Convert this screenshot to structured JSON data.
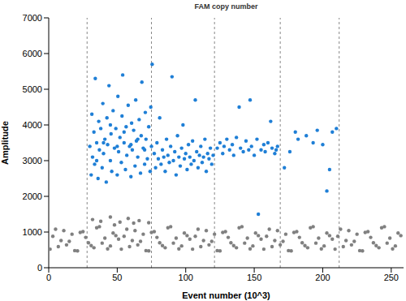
{
  "chart_data": {
    "type": "scatter",
    "title": "FAM copy number",
    "x_label": "Event number (10^3)",
    "y_label": "Amplitude",
    "xlim": [
      0,
      259
    ],
    "ylim": [
      0,
      7000
    ],
    "xticks": [
      0,
      50,
      100,
      150,
      200,
      250
    ],
    "yticks": [
      0,
      1000,
      2000,
      3000,
      4000,
      5000,
      6000,
      7000
    ],
    "grid": false,
    "separators": [
      28,
      75,
      121,
      169,
      212
    ],
    "series": [
      {
        "color": "#808080",
        "marker": "circle",
        "points": [
          [
            1,
            520
          ],
          [
            5,
            1080
          ],
          [
            9,
            760
          ],
          [
            13,
            640
          ],
          [
            17,
            940
          ],
          [
            21,
            470
          ],
          [
            25,
            1010
          ],
          [
            29,
            700
          ],
          [
            33,
            560
          ],
          [
            37,
            1150
          ],
          [
            41,
            830
          ],
          [
            45,
            610
          ],
          [
            49,
            900
          ],
          [
            53,
            520
          ],
          [
            57,
            1080
          ],
          [
            61,
            760
          ],
          [
            65,
            640
          ],
          [
            69,
            940
          ],
          [
            73,
            470
          ],
          [
            77,
            1010
          ],
          [
            81,
            700
          ],
          [
            85,
            560
          ],
          [
            89,
            1150
          ],
          [
            93,
            830
          ],
          [
            97,
            610
          ],
          [
            101,
            900
          ],
          [
            105,
            520
          ],
          [
            109,
            1080
          ],
          [
            113,
            760
          ],
          [
            117,
            640
          ],
          [
            121,
            940
          ],
          [
            125,
            470
          ],
          [
            129,
            1010
          ],
          [
            133,
            700
          ],
          [
            137,
            560
          ],
          [
            141,
            1150
          ],
          [
            145,
            830
          ],
          [
            149,
            610
          ],
          [
            153,
            900
          ],
          [
            157,
            520
          ],
          [
            161,
            1080
          ],
          [
            165,
            760
          ],
          [
            169,
            640
          ],
          [
            173,
            940
          ],
          [
            177,
            470
          ],
          [
            181,
            1010
          ],
          [
            185,
            700
          ],
          [
            189,
            560
          ],
          [
            193,
            1150
          ],
          [
            197,
            830
          ],
          [
            201,
            610
          ],
          [
            205,
            900
          ],
          [
            209,
            520
          ],
          [
            213,
            1080
          ],
          [
            217,
            760
          ],
          [
            221,
            640
          ],
          [
            225,
            940
          ],
          [
            229,
            470
          ],
          [
            233,
            1010
          ],
          [
            237,
            700
          ],
          [
            241,
            560
          ],
          [
            245,
            1150
          ],
          [
            249,
            830
          ],
          [
            253,
            610
          ],
          [
            257,
            900
          ],
          [
            3,
            880
          ],
          [
            7,
            590
          ],
          [
            11,
            1040
          ],
          [
            15,
            740
          ],
          [
            19,
            480
          ],
          [
            23,
            990
          ],
          [
            27,
            850
          ],
          [
            31,
            620
          ],
          [
            35,
            1120
          ],
          [
            39,
            690
          ],
          [
            43,
            530
          ],
          [
            47,
            970
          ],
          [
            51,
            800
          ],
          [
            55,
            880
          ],
          [
            59,
            590
          ],
          [
            63,
            1040
          ],
          [
            67,
            740
          ],
          [
            71,
            480
          ],
          [
            75,
            990
          ],
          [
            79,
            850
          ],
          [
            83,
            620
          ],
          [
            87,
            1120
          ],
          [
            91,
            690
          ],
          [
            95,
            530
          ],
          [
            99,
            970
          ],
          [
            103,
            800
          ],
          [
            107,
            880
          ],
          [
            111,
            590
          ],
          [
            115,
            1040
          ],
          [
            119,
            740
          ],
          [
            123,
            480
          ],
          [
            127,
            990
          ],
          [
            131,
            850
          ],
          [
            135,
            620
          ],
          [
            139,
            1120
          ],
          [
            143,
            690
          ],
          [
            147,
            530
          ],
          [
            151,
            970
          ],
          [
            155,
            800
          ],
          [
            159,
            880
          ],
          [
            163,
            590
          ],
          [
            167,
            1040
          ],
          [
            171,
            740
          ],
          [
            175,
            480
          ],
          [
            179,
            990
          ],
          [
            183,
            850
          ],
          [
            187,
            620
          ],
          [
            191,
            1120
          ],
          [
            195,
            690
          ],
          [
            199,
            530
          ],
          [
            203,
            970
          ],
          [
            207,
            800
          ],
          [
            211,
            880
          ],
          [
            215,
            590
          ],
          [
            219,
            1040
          ],
          [
            223,
            740
          ],
          [
            227,
            480
          ],
          [
            231,
            990
          ],
          [
            235,
            850
          ],
          [
            239,
            620
          ],
          [
            243,
            1120
          ],
          [
            247,
            690
          ],
          [
            251,
            530
          ],
          [
            255,
            970
          ],
          [
            32,
            1350
          ],
          [
            38,
            1300
          ],
          [
            45,
            1420
          ],
          [
            48,
            1200
          ],
          [
            52,
            1280
          ],
          [
            58,
            1380
          ],
          [
            62,
            1250
          ],
          [
            66,
            1320
          ],
          [
            73,
            1260
          ]
        ]
      },
      {
        "color": "#1f7fd6",
        "marker": "circle",
        "points": [
          [
            30,
            3400
          ],
          [
            31,
            2600
          ],
          [
            31.5,
            4300
          ],
          [
            32,
            3100
          ],
          [
            33,
            3800
          ],
          [
            33.5,
            2900
          ],
          [
            34,
            5300
          ],
          [
            35,
            3500
          ],
          [
            36,
            2500
          ],
          [
            36.5,
            4100
          ],
          [
            37,
            3300
          ],
          [
            38,
            3900
          ],
          [
            39,
            2800
          ],
          [
            39.5,
            4600
          ],
          [
            40,
            3200
          ],
          [
            41,
            3600
          ],
          [
            42,
            2400
          ],
          [
            42.5,
            4200
          ],
          [
            43,
            3450
          ],
          [
            44,
            5100
          ],
          [
            45,
            3000
          ],
          [
            45.5,
            3750
          ],
          [
            46,
            2700
          ],
          [
            47,
            4400
          ],
          [
            48,
            3350
          ],
          [
            49,
            3900
          ],
          [
            50,
            2600
          ],
          [
            50.5,
            4800
          ],
          [
            51,
            3250
          ],
          [
            52,
            3650
          ],
          [
            53,
            2950
          ],
          [
            53.5,
            4250
          ],
          [
            54,
            5400
          ],
          [
            55,
            3500
          ],
          [
            56,
            2750
          ],
          [
            56.5,
            3950
          ],
          [
            57,
            3150
          ],
          [
            58,
            4550
          ],
          [
            59,
            3400
          ],
          [
            60,
            2550
          ],
          [
            60.5,
            4050
          ],
          [
            61,
            3300
          ],
          [
            62,
            3850
          ],
          [
            63,
            2850
          ],
          [
            63.5,
            4700
          ],
          [
            64,
            3550
          ],
          [
            65,
            3100
          ],
          [
            66,
            4150
          ],
          [
            67,
            2650
          ],
          [
            67.5,
            3700
          ],
          [
            68,
            5200
          ],
          [
            69,
            3350
          ],
          [
            70,
            2900
          ],
          [
            70.5,
            4350
          ],
          [
            71,
            3600
          ],
          [
            72,
            3050
          ],
          [
            73,
            3950
          ],
          [
            74,
            2700
          ],
          [
            74.5,
            4500
          ],
          [
            75,
            3400
          ],
          [
            75.5,
            5700
          ],
          [
            40,
            3500
          ],
          [
            50,
            3400
          ],
          [
            60,
            3450
          ],
          [
            70,
            3300
          ],
          [
            35,
            3000
          ],
          [
            45,
            4000
          ],
          [
            55,
            3800
          ],
          [
            65,
            3600
          ],
          [
            77,
            3200
          ],
          [
            78,
            2800
          ],
          [
            79,
            3500
          ],
          [
            80,
            3050
          ],
          [
            81,
            4200
          ],
          [
            82,
            2900
          ],
          [
            83,
            3300
          ],
          [
            84,
            3100
          ],
          [
            85,
            2700
          ],
          [
            86,
            3600
          ],
          [
            87,
            3150
          ],
          [
            88,
            2950
          ],
          [
            89,
            3400
          ],
          [
            90,
            5350
          ],
          [
            91,
            3000
          ],
          [
            92,
            3250
          ],
          [
            93,
            2600
          ],
          [
            94,
            3700
          ],
          [
            95,
            3100
          ],
          [
            96,
            2850
          ],
          [
            97,
            3350
          ],
          [
            98,
            4000
          ],
          [
            99,
            3050
          ],
          [
            100,
            3200
          ],
          [
            101,
            2750
          ],
          [
            102,
            3450
          ],
          [
            103,
            3100
          ],
          [
            104,
            2900
          ],
          [
            105,
            3550
          ],
          [
            106,
            3000
          ],
          [
            107,
            4700
          ],
          [
            108,
            3250
          ],
          [
            109,
            2800
          ],
          [
            110,
            3150
          ],
          [
            111,
            3400
          ],
          [
            112,
            2950
          ],
          [
            113,
            3100
          ],
          [
            114,
            3600
          ],
          [
            115,
            2700
          ],
          [
            116,
            3200
          ],
          [
            117,
            3050
          ],
          [
            118,
            3350
          ],
          [
            119,
            2900
          ],
          [
            120,
            3150
          ],
          [
            123,
            3350
          ],
          [
            125,
            3500
          ],
          [
            127,
            3200
          ],
          [
            128,
            3400
          ],
          [
            130,
            3600
          ],
          [
            132,
            3300
          ],
          [
            134,
            3450
          ],
          [
            135,
            3150
          ],
          [
            137,
            3650
          ],
          [
            139,
            4500
          ],
          [
            140,
            3350
          ],
          [
            142,
            3250
          ],
          [
            144,
            3550
          ],
          [
            146,
            3300
          ],
          [
            147,
            4700
          ],
          [
            148,
            3400
          ],
          [
            150,
            3150
          ],
          [
            152,
            3600
          ],
          [
            153,
            1500
          ],
          [
            155,
            3300
          ],
          [
            157,
            3450
          ],
          [
            158,
            3250
          ],
          [
            160,
            3500
          ],
          [
            162,
            4100
          ],
          [
            163,
            3350
          ],
          [
            165,
            3200
          ],
          [
            166,
            3300
          ],
          [
            167,
            3400
          ],
          [
            172,
            2800
          ],
          [
            176,
            3250
          ],
          [
            180,
            3800
          ],
          [
            182,
            3600
          ],
          [
            188,
            3700
          ],
          [
            193,
            3500
          ],
          [
            196,
            3850
          ],
          [
            200,
            3450
          ],
          [
            203,
            2150
          ],
          [
            205,
            2750
          ],
          [
            207,
            3800
          ],
          [
            210,
            3900
          ]
        ]
      }
    ]
  }
}
